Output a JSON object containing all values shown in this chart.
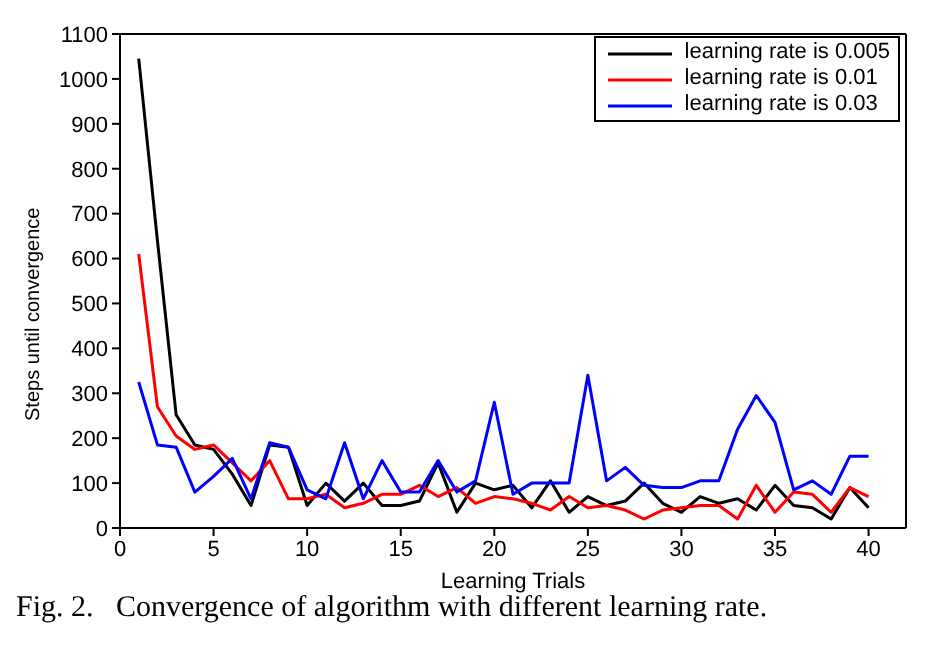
{
  "chart_data": {
    "type": "line",
    "xlabel": "Learning Trials",
    "ylabel": "Steps until convergence",
    "annotations": [
      "Fig. 2.   Convergence of algorithm with different learning rate."
    ],
    "x": [
      1,
      2,
      3,
      4,
      5,
      6,
      7,
      8,
      9,
      10,
      11,
      12,
      13,
      14,
      15,
      16,
      17,
      18,
      19,
      20,
      21,
      22,
      23,
      24,
      25,
      26,
      27,
      28,
      29,
      30,
      31,
      32,
      33,
      34,
      35,
      36,
      37,
      38,
      39,
      40
    ],
    "series": [
      {
        "name": "learning rate is 0.005",
        "color": "#000000",
        "values": [
          1045,
          640,
          252,
          185,
          175,
          120,
          50,
          185,
          180,
          50,
          100,
          60,
          100,
          50,
          50,
          60,
          145,
          35,
          100,
          85,
          95,
          45,
          105,
          35,
          70,
          50,
          60,
          100,
          55,
          35,
          70,
          55,
          65,
          40,
          95,
          50,
          45,
          20,
          90,
          45
        ]
      },
      {
        "name": "learning rate is 0.01",
        "color": "#ff0000",
        "values": [
          610,
          270,
          205,
          175,
          185,
          145,
          105,
          150,
          65,
          65,
          75,
          45,
          55,
          75,
          75,
          95,
          70,
          90,
          55,
          70,
          65,
          55,
          40,
          70,
          45,
          50,
          40,
          20,
          40,
          45,
          50,
          50,
          20,
          95,
          35,
          80,
          75,
          35,
          90,
          70
        ]
      },
      {
        "name": "learning rate is 0.03",
        "color": "#0000ff",
        "values": [
          325,
          185,
          180,
          80,
          115,
          155,
          65,
          190,
          180,
          85,
          65,
          190,
          65,
          150,
          80,
          80,
          150,
          80,
          105,
          280,
          75,
          100,
          100,
          100,
          340,
          105,
          135,
          95,
          90,
          90,
          105,
          105,
          220,
          295,
          235,
          85,
          105,
          75,
          160,
          160
        ]
      }
    ],
    "xlim": [
      0,
      42
    ],
    "xticks": [
      0,
      5,
      10,
      15,
      20,
      25,
      30,
      35,
      40
    ],
    "ylim": [
      0,
      1100
    ],
    "yticks": [
      0,
      100,
      200,
      300,
      400,
      500,
      600,
      700,
      800,
      900,
      1000,
      1100
    ],
    "grid": false,
    "legend": "top right",
    "line_style": "solid",
    "marker": "none"
  }
}
